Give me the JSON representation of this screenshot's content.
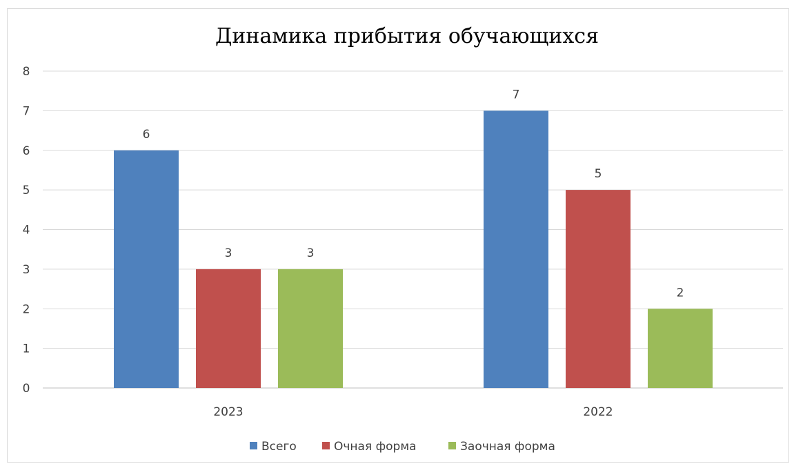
{
  "chart_data": {
    "type": "bar",
    "title": "Динамика прибытия обучающихся",
    "xlabel": "",
    "ylabel": "",
    "categories": [
      "2023",
      "2022"
    ],
    "series": [
      {
        "name": "Всего",
        "values": [
          6,
          7
        ],
        "color": "#4f81bd"
      },
      {
        "name": "Очная форма",
        "values": [
          3,
          5
        ],
        "color": "#c0504d"
      },
      {
        "name": "Заочная форма",
        "values": [
          3,
          2
        ],
        "color": "#9bbb59"
      }
    ],
    "ylim": [
      0,
      8
    ],
    "yticks": [
      "0",
      "1",
      "2",
      "3",
      "4",
      "5",
      "6",
      "7",
      "8"
    ],
    "grid": true,
    "data_labels": true,
    "legend_position": "bottom"
  }
}
